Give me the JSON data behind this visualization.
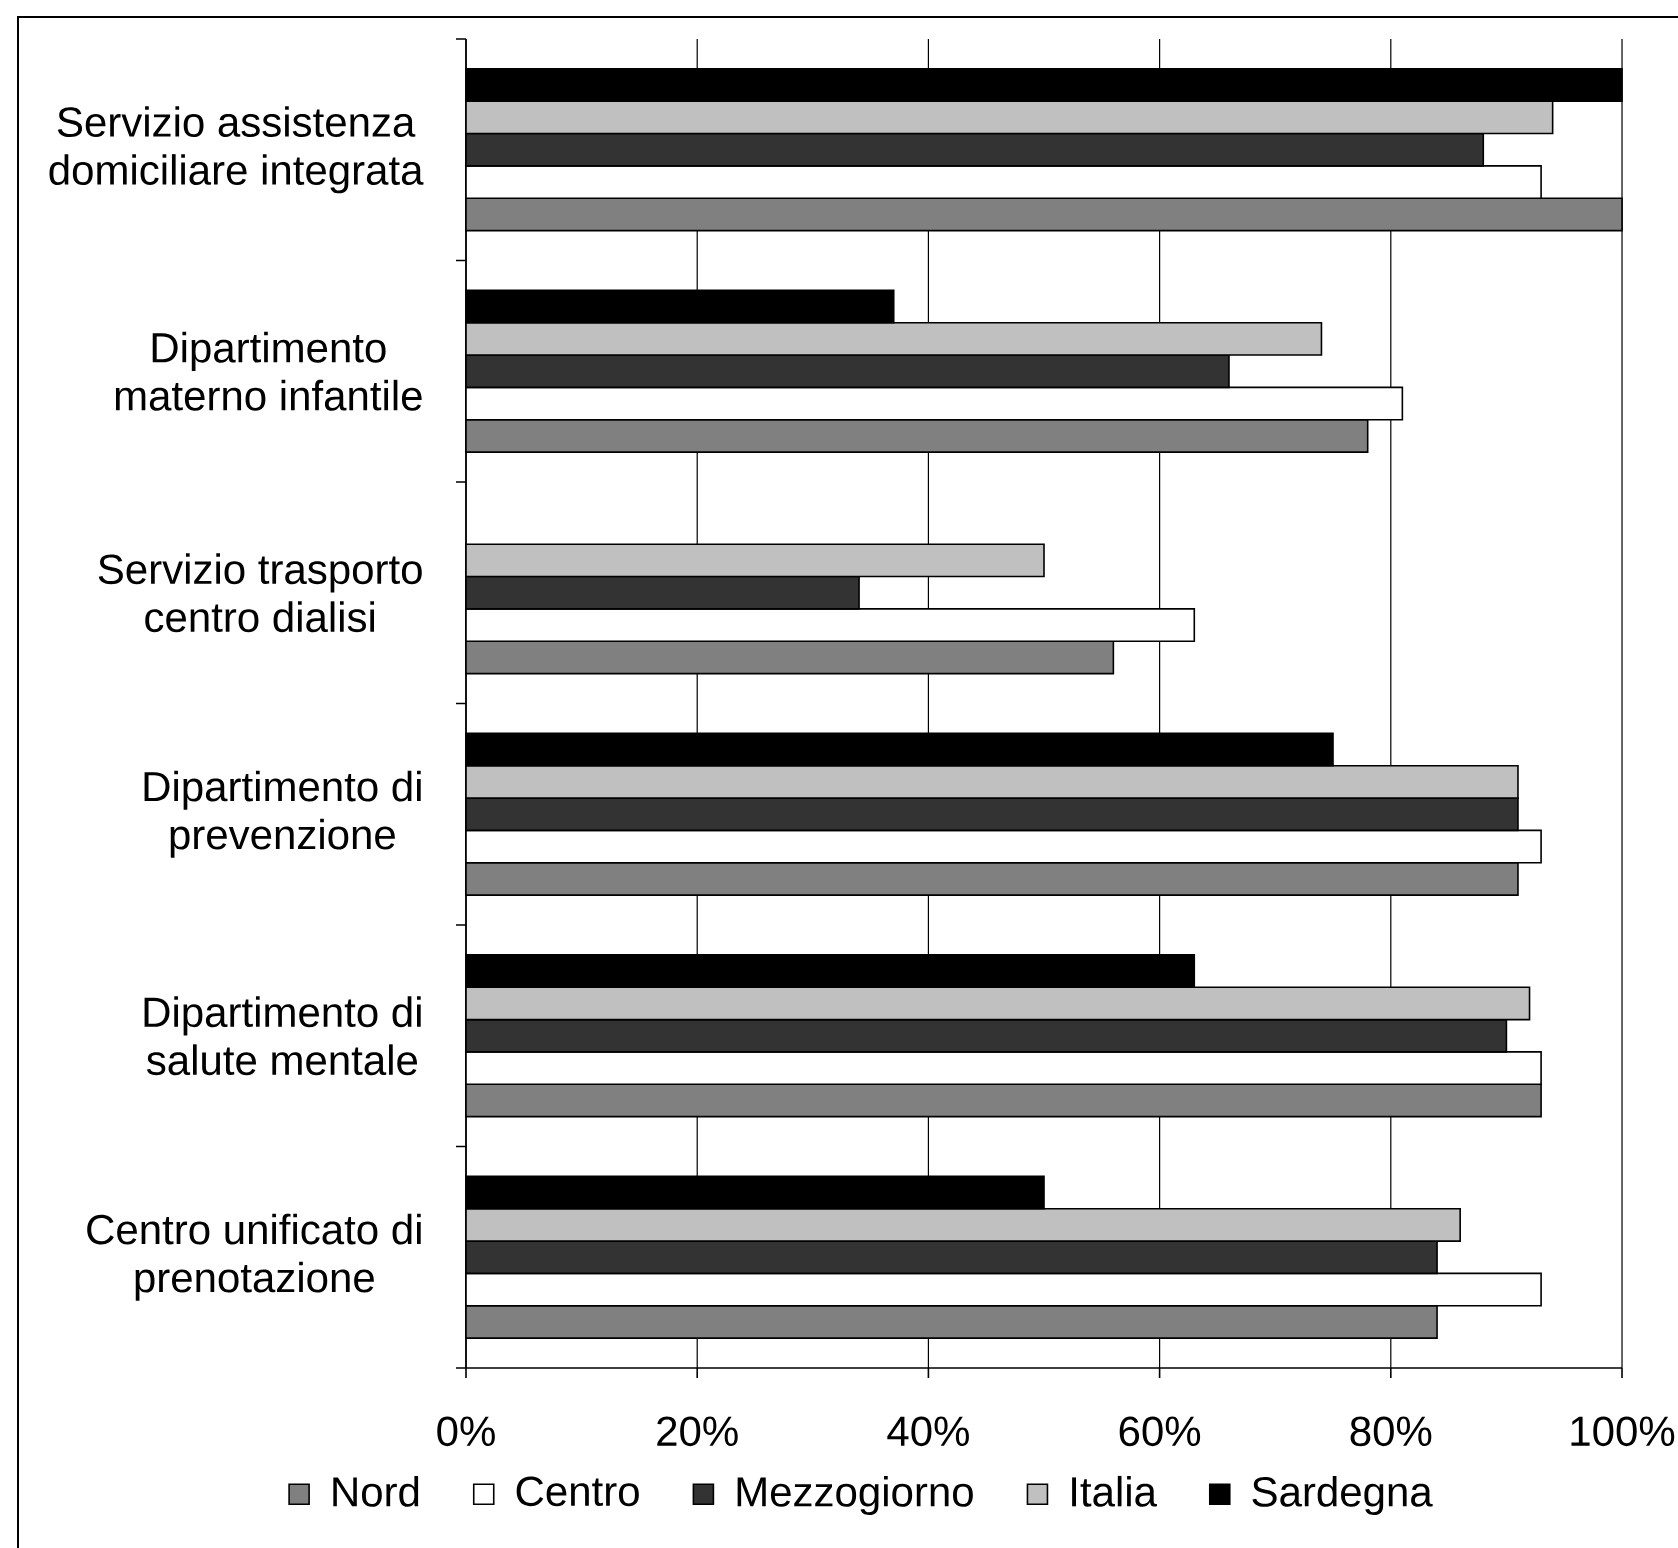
{
  "chart_data": {
    "type": "bar",
    "orientation": "horizontal",
    "categories": [
      "Servizio assistenza domiciliare integrata",
      "Dipartimento materno infantile",
      "Servizio trasporto centro dialisi",
      "Dipartimento di prevenzione",
      "Dipartimento di salute mentale",
      "Centro unificato di prenotazione"
    ],
    "series": [
      {
        "name": "Nord",
        "color": "#808080",
        "values": [
          100,
          78,
          56,
          91,
          93,
          84
        ]
      },
      {
        "name": "Centro",
        "color": "#ffffff",
        "values": [
          93,
          81,
          63,
          93,
          93,
          93
        ]
      },
      {
        "name": "Mezzogiorno",
        "color": "#333333",
        "values": [
          88,
          66,
          34,
          91,
          90,
          84
        ]
      },
      {
        "name": "Italia",
        "color": "#c0c0c0",
        "values": [
          94,
          74,
          50,
          91,
          92,
          86
        ]
      },
      {
        "name": "Sardegna",
        "color": "#000000",
        "values": [
          100,
          37,
          null,
          75,
          63,
          50
        ]
      }
    ],
    "xlim": [
      0,
      100
    ],
    "xticks": [
      {
        "value": 0,
        "label": "0%"
      },
      {
        "value": 20,
        "label": "20%"
      },
      {
        "value": 40,
        "label": "40%"
      },
      {
        "value": 60,
        "label": "60%"
      },
      {
        "value": 80,
        "label": "80%"
      },
      {
        "value": 100,
        "label": "100%"
      }
    ],
    "grid": "x",
    "legend": "bottom"
  }
}
